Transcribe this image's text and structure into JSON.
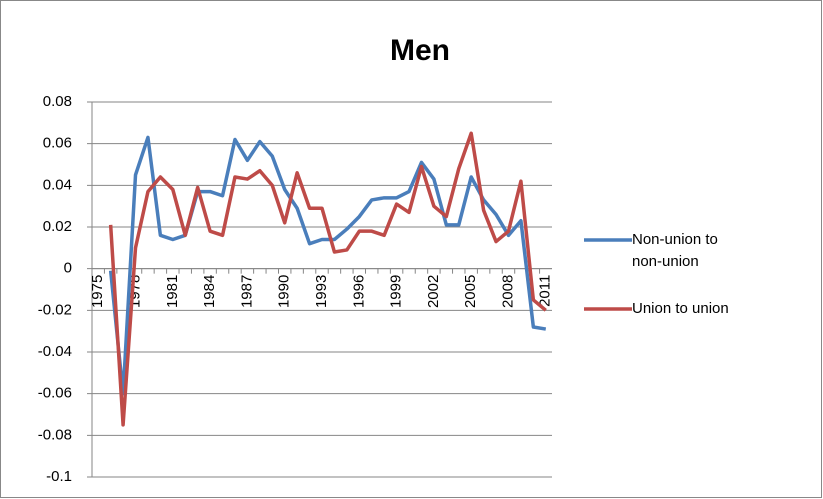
{
  "chart_data": {
    "type": "line",
    "title": "Men",
    "categories": [
      "1975",
      null,
      null,
      "1978",
      null,
      null,
      "1981",
      null,
      null,
      "1984",
      null,
      null,
      "1987",
      null,
      null,
      "1990",
      null,
      null,
      "1993",
      null,
      null,
      "1996",
      null,
      null,
      "1999",
      null,
      null,
      "2002",
      null,
      null,
      "2005",
      null,
      null,
      "2008",
      null,
      null,
      "2011"
    ],
    "series": [
      {
        "name": "Non-union to non-union",
        "color": "#4a7ebb",
        "values": [
          null,
          -0.001,
          -0.06,
          0.045,
          0.063,
          0.016,
          0.014,
          0.016,
          0.037,
          0.037,
          0.035,
          0.062,
          0.052,
          0.061,
          0.054,
          0.038,
          0.029,
          0.012,
          0.014,
          0.014,
          0.019,
          0.025,
          0.033,
          0.034,
          0.034,
          0.037,
          0.051,
          0.043,
          0.021,
          0.021,
          0.044,
          0.033,
          0.026,
          0.016,
          0.023,
          -0.028,
          -0.029
        ]
      },
      {
        "name": "Union to union",
        "color": "#be4b48",
        "values": [
          null,
          0.021,
          -0.075,
          0.01,
          0.037,
          0.044,
          0.038,
          0.016,
          0.039,
          0.018,
          0.016,
          0.044,
          0.043,
          0.047,
          0.04,
          0.022,
          0.046,
          0.029,
          0.029,
          0.008,
          0.009,
          0.018,
          0.018,
          0.016,
          0.031,
          0.027,
          0.049,
          0.03,
          0.025,
          0.048,
          0.065,
          0.028,
          0.013,
          0.018,
          0.042,
          -0.015,
          -0.02
        ]
      }
    ],
    "ylim": [
      -0.1,
      0.08
    ],
    "yticks": [
      0.08,
      0.06,
      0.04,
      0.02,
      0,
      -0.02,
      -0.04,
      -0.06,
      -0.08,
      -0.1
    ],
    "grid": true,
    "legend": "right"
  }
}
